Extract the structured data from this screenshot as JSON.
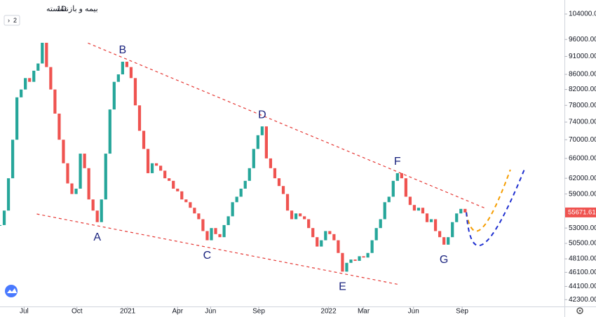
{
  "chart_data": {
    "type": "candlestick",
    "title": "بیمه و بازنشسته",
    "interval": "1D",
    "badge": "2",
    "log_scale": true,
    "grid": false,
    "up_color": "#26a69a",
    "down_color": "#ef5350",
    "values": [
      53500,
      56000,
      62000,
      70000,
      80000,
      82000,
      85000,
      84000,
      87000,
      89000,
      95000,
      88000,
      82000,
      76000,
      70000,
      65000,
      61000,
      59000,
      60000,
      67000,
      64000,
      58000,
      56000,
      54000,
      58000,
      67000,
      77000,
      84000,
      86000,
      89500,
      88000,
      85000,
      78000,
      72000,
      68000,
      63000,
      65000,
      64500,
      63500,
      62000,
      61500,
      60000,
      59500,
      58000,
      57500,
      56500,
      55500,
      54500,
      52500,
      51000,
      53000,
      52000,
      51500,
      53500,
      55000,
      57500,
      58500,
      60000,
      61500,
      64000,
      68000,
      71000,
      73000,
      66000,
      64000,
      62000,
      60500,
      59000,
      56000,
      54500,
      55500,
      55000,
      54500,
      53000,
      51500,
      50000,
      51000,
      52500,
      52000,
      51000,
      49000,
      46200,
      47500,
      48000,
      47800,
      48500,
      48300,
      49000,
      51000,
      53000,
      54500,
      57500,
      58500,
      61500,
      63000,
      62000,
      58500,
      57000,
      56000,
      56500,
      55500,
      54000,
      54500,
      52500,
      51500,
      50300,
      51500,
      54000,
      55500,
      56300,
      55671.61
    ],
    "last_price": 55671.61,
    "last_price_color": "#ef5350",
    "xlim": [
      0,
      133.5
    ],
    "ylim": [
      41400,
      108700
    ],
    "xticks": [
      {
        "value": 5.7,
        "label": "Jul"
      },
      {
        "value": 18.2,
        "label": "Oct"
      },
      {
        "value": 30.2,
        "label": "2021"
      },
      {
        "value": 42,
        "label": "Apr"
      },
      {
        "value": 49.8,
        "label": "Jun"
      },
      {
        "value": 61.2,
        "label": "Sep"
      },
      {
        "value": 77.7,
        "label": "2022"
      },
      {
        "value": 86,
        "label": "Mar"
      },
      {
        "value": 97.8,
        "label": "Jun"
      },
      {
        "value": 109.3,
        "label": "Sep"
      }
    ],
    "yticks": [
      {
        "value": 104000,
        "label": "104000.00"
      },
      {
        "value": 96000,
        "label": "96000.00"
      },
      {
        "value": 91000,
        "label": "91000.00"
      },
      {
        "value": 86000,
        "label": "86000.00"
      },
      {
        "value": 82000,
        "label": "82000.00"
      },
      {
        "value": 78000,
        "label": "78000.00"
      },
      {
        "value": 74000,
        "label": "74000.00"
      },
      {
        "value": 70000,
        "label": "70000.00"
      },
      {
        "value": 66000,
        "label": "66000.00"
      },
      {
        "value": 62000,
        "label": "62000.00"
      },
      {
        "value": 59000,
        "label": "59000.00"
      },
      {
        "value": 53000,
        "label": "53000.00"
      },
      {
        "value": 50500,
        "label": "50500.00"
      },
      {
        "value": 48100,
        "label": "48100.00"
      },
      {
        "value": 46100,
        "label": "46100.00"
      },
      {
        "value": 44100,
        "label": "44100.00"
      },
      {
        "value": 42300,
        "label": "42300.00"
      }
    ],
    "annotations": [
      {
        "label": "A",
        "index": 23,
        "position": "below"
      },
      {
        "label": "B",
        "index": 29,
        "position": "above"
      },
      {
        "label": "C",
        "index": 49,
        "position": "below"
      },
      {
        "label": "D",
        "index": 62,
        "position": "above"
      },
      {
        "label": "E",
        "index": 81,
        "position": "below"
      },
      {
        "label": "F",
        "index": 94,
        "position": "above"
      },
      {
        "label": "G",
        "index": 105,
        "position": "below"
      }
    ],
    "trend_lines": [
      {
        "color": "#e53935",
        "x": [
          20.8,
          114.8
        ],
        "y": [
          94900,
          56400
        ]
      },
      {
        "color": "#e53935",
        "x": [
          8.7,
          94
        ],
        "y": [
          55400,
          44400
        ]
      }
    ],
    "projections": [
      {
        "color": "#f59d00",
        "x": [
          110.3,
          114,
          120.7
        ],
        "y": [
          55700,
          53000,
          63700
        ]
      },
      {
        "color": "#1e2fd0",
        "x": [
          110.3,
          114.5,
          124
        ],
        "y": [
          55700,
          50500,
          63700
        ]
      }
    ]
  }
}
